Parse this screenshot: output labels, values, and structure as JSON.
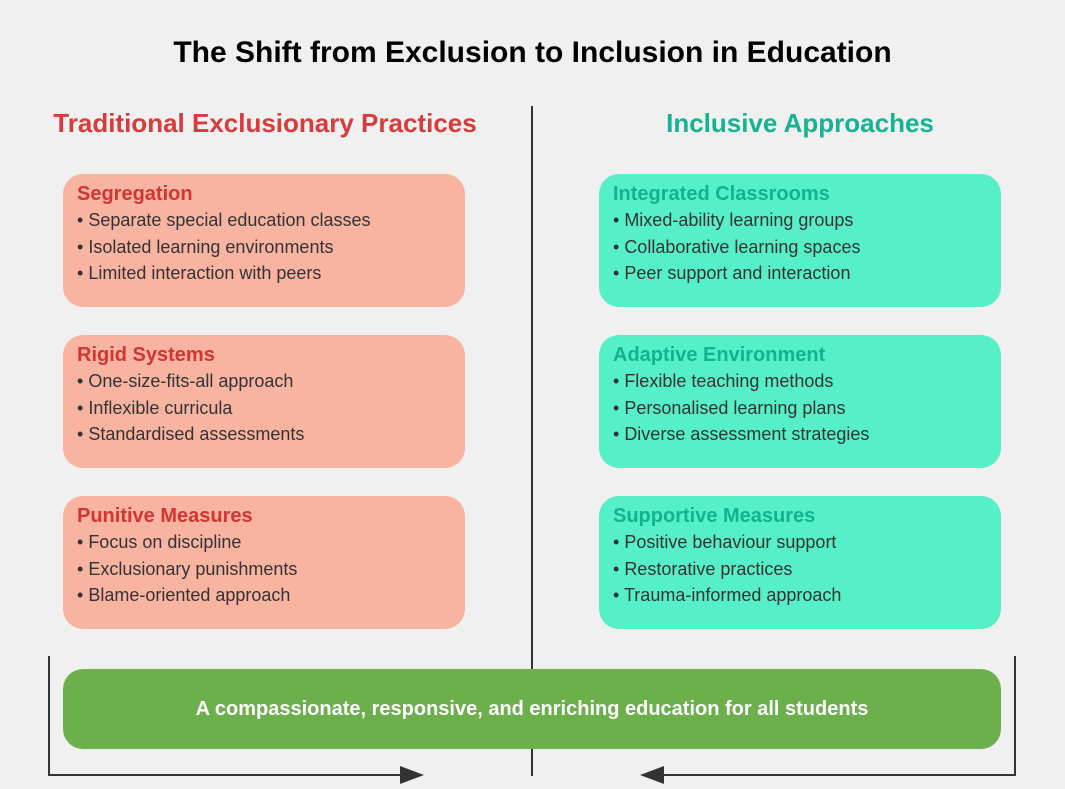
{
  "title": "The Shift from Exclusion to Inclusion in Education",
  "left_column": {
    "heading": "Traditional Exclusionary Practices",
    "color": "#d93a3a",
    "cards": [
      {
        "title": "Segregation",
        "items": [
          "Separate special education classes",
          "Isolated learning environments",
          "Limited interaction with peers"
        ]
      },
      {
        "title": "Rigid Systems",
        "items": [
          "One-size-fits-all approach",
          "Inflexible curricula",
          "Standardised assessments"
        ]
      },
      {
        "title": "Punitive Measures",
        "items": [
          "Focus on discipline",
          "Exclusionary punishments",
          "Blame-oriented approach"
        ]
      }
    ]
  },
  "right_column": {
    "heading": "Inclusive Approaches",
    "color": "#14b391",
    "cards": [
      {
        "title": "Integrated Classrooms",
        "items": [
          "Mixed-ability learning groups",
          "Collaborative learning spaces",
          "Peer support and interaction"
        ]
      },
      {
        "title": "Adaptive Environment",
        "items": [
          "Flexible teaching methods",
          "Personalised learning plans",
          "Diverse assessment strategies"
        ]
      },
      {
        "title": "Supportive Measures",
        "items": [
          "Positive behaviour support",
          "Restorative practices",
          "Trauma-informed approach"
        ]
      }
    ]
  },
  "banner": {
    "text": "A compassionate, responsive, and enriching education for all students",
    "color": "#6bb04b"
  }
}
